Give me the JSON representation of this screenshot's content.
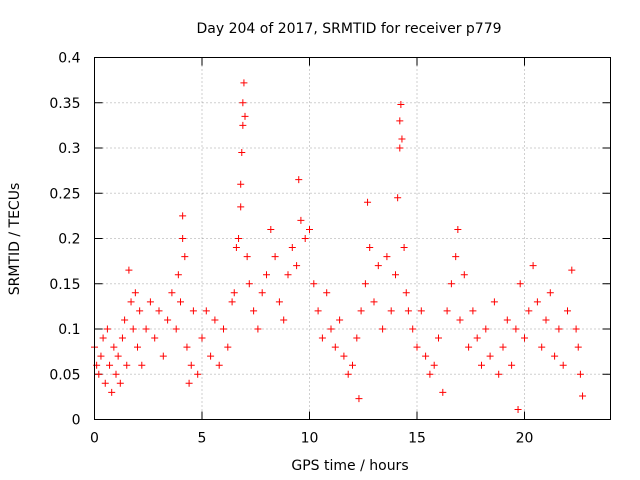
{
  "chart_data": {
    "type": "scatter",
    "title": "Day 204 of 2017, SRMTID for receiver p779",
    "xlabel": "GPS time / hours",
    "ylabel": "SRMTID / TECUs",
    "xlim": [
      0,
      24
    ],
    "ylim": [
      0,
      0.4
    ],
    "xticks": [
      0,
      5,
      10,
      15,
      20
    ],
    "xtick_labels": [
      "0",
      "5",
      "10",
      "15",
      "20"
    ],
    "yticks": [
      0,
      0.05,
      0.1,
      0.15,
      0.2,
      0.25,
      0.3,
      0.35,
      0.4
    ],
    "ytick_labels": [
      "0",
      "0.05",
      "0.1",
      "0.15",
      "0.2",
      "0.25",
      "0.3",
      "0.35",
      "0.4"
    ],
    "grid": true,
    "marker": "+",
    "color": "#ff0000",
    "series": [
      {
        "name": "SRMTID",
        "points": [
          [
            0.0,
            0.08
          ],
          [
            0.1,
            0.06
          ],
          [
            0.2,
            0.05
          ],
          [
            0.3,
            0.07
          ],
          [
            0.4,
            0.09
          ],
          [
            0.5,
            0.04
          ],
          [
            0.6,
            0.1
          ],
          [
            0.7,
            0.06
          ],
          [
            0.8,
            0.03
          ],
          [
            0.9,
            0.08
          ],
          [
            1.0,
            0.05
          ],
          [
            1.1,
            0.07
          ],
          [
            1.2,
            0.04
          ],
          [
            1.3,
            0.09
          ],
          [
            1.4,
            0.11
          ],
          [
            1.5,
            0.06
          ],
          [
            1.6,
            0.165
          ],
          [
            1.7,
            0.13
          ],
          [
            1.8,
            0.1
          ],
          [
            1.9,
            0.14
          ],
          [
            2.0,
            0.08
          ],
          [
            2.1,
            0.12
          ],
          [
            2.2,
            0.06
          ],
          [
            2.4,
            0.1
          ],
          [
            2.6,
            0.13
          ],
          [
            2.8,
            0.09
          ],
          [
            3.0,
            0.12
          ],
          [
            3.2,
            0.07
          ],
          [
            3.4,
            0.11
          ],
          [
            3.6,
            0.14
          ],
          [
            3.8,
            0.1
          ],
          [
            3.9,
            0.16
          ],
          [
            4.0,
            0.13
          ],
          [
            4.1,
            0.225
          ],
          [
            4.1,
            0.2
          ],
          [
            4.2,
            0.18
          ],
          [
            4.3,
            0.08
          ],
          [
            4.4,
            0.04
          ],
          [
            4.5,
            0.06
          ],
          [
            4.6,
            0.12
          ],
          [
            4.8,
            0.05
          ],
          [
            5.0,
            0.09
          ],
          [
            5.2,
            0.12
          ],
          [
            5.4,
            0.07
          ],
          [
            5.6,
            0.11
          ],
          [
            5.8,
            0.06
          ],
          [
            6.0,
            0.1
          ],
          [
            6.2,
            0.08
          ],
          [
            6.4,
            0.13
          ],
          [
            6.5,
            0.14
          ],
          [
            6.6,
            0.19
          ],
          [
            6.7,
            0.2
          ],
          [
            6.8,
            0.235
          ],
          [
            6.8,
            0.26
          ],
          [
            6.85,
            0.295
          ],
          [
            6.9,
            0.325
          ],
          [
            6.9,
            0.35
          ],
          [
            6.95,
            0.372
          ],
          [
            7.0,
            0.335
          ],
          [
            7.1,
            0.18
          ],
          [
            7.2,
            0.15
          ],
          [
            7.4,
            0.12
          ],
          [
            7.6,
            0.1
          ],
          [
            7.8,
            0.14
          ],
          [
            8.0,
            0.16
          ],
          [
            8.2,
            0.21
          ],
          [
            8.4,
            0.18
          ],
          [
            8.6,
            0.13
          ],
          [
            8.8,
            0.11
          ],
          [
            9.0,
            0.16
          ],
          [
            9.2,
            0.19
          ],
          [
            9.4,
            0.17
          ],
          [
            9.5,
            0.265
          ],
          [
            9.6,
            0.22
          ],
          [
            9.8,
            0.2
          ],
          [
            10.0,
            0.21
          ],
          [
            10.2,
            0.15
          ],
          [
            10.4,
            0.12
          ],
          [
            10.6,
            0.09
          ],
          [
            10.8,
            0.14
          ],
          [
            11.0,
            0.1
          ],
          [
            11.2,
            0.08
          ],
          [
            11.4,
            0.11
          ],
          [
            11.6,
            0.07
          ],
          [
            11.8,
            0.05
          ],
          [
            12.0,
            0.06
          ],
          [
            12.2,
            0.09
          ],
          [
            12.3,
            0.023
          ],
          [
            12.4,
            0.12
          ],
          [
            12.6,
            0.15
          ],
          [
            12.7,
            0.24
          ],
          [
            12.8,
            0.19
          ],
          [
            13.0,
            0.13
          ],
          [
            13.2,
            0.17
          ],
          [
            13.4,
            0.1
          ],
          [
            13.6,
            0.18
          ],
          [
            13.8,
            0.12
          ],
          [
            14.0,
            0.16
          ],
          [
            14.1,
            0.245
          ],
          [
            14.2,
            0.33
          ],
          [
            14.2,
            0.3
          ],
          [
            14.25,
            0.348
          ],
          [
            14.3,
            0.31
          ],
          [
            14.4,
            0.19
          ],
          [
            14.5,
            0.14
          ],
          [
            14.6,
            0.12
          ],
          [
            14.8,
            0.1
          ],
          [
            15.0,
            0.08
          ],
          [
            15.2,
            0.12
          ],
          [
            15.4,
            0.07
          ],
          [
            15.6,
            0.05
          ],
          [
            15.8,
            0.06
          ],
          [
            16.0,
            0.09
          ],
          [
            16.2,
            0.03
          ],
          [
            16.4,
            0.12
          ],
          [
            16.6,
            0.15
          ],
          [
            16.8,
            0.18
          ],
          [
            16.9,
            0.21
          ],
          [
            17.0,
            0.11
          ],
          [
            17.2,
            0.16
          ],
          [
            17.4,
            0.08
          ],
          [
            17.6,
            0.12
          ],
          [
            17.8,
            0.09
          ],
          [
            18.0,
            0.06
          ],
          [
            18.2,
            0.1
          ],
          [
            18.4,
            0.07
          ],
          [
            18.6,
            0.13
          ],
          [
            18.8,
            0.05
          ],
          [
            19.0,
            0.08
          ],
          [
            19.2,
            0.11
          ],
          [
            19.4,
            0.06
          ],
          [
            19.6,
            0.1
          ],
          [
            19.7,
            0.011
          ],
          [
            19.8,
            0.15
          ],
          [
            20.0,
            0.09
          ],
          [
            20.2,
            0.12
          ],
          [
            20.4,
            0.17
          ],
          [
            20.6,
            0.13
          ],
          [
            20.8,
            0.08
          ],
          [
            21.0,
            0.11
          ],
          [
            21.2,
            0.14
          ],
          [
            21.4,
            0.07
          ],
          [
            21.6,
            0.1
          ],
          [
            21.8,
            0.06
          ],
          [
            22.0,
            0.12
          ],
          [
            22.2,
            0.165
          ],
          [
            22.4,
            0.1
          ],
          [
            22.5,
            0.08
          ],
          [
            22.6,
            0.05
          ],
          [
            22.7,
            0.026
          ]
        ]
      }
    ]
  }
}
